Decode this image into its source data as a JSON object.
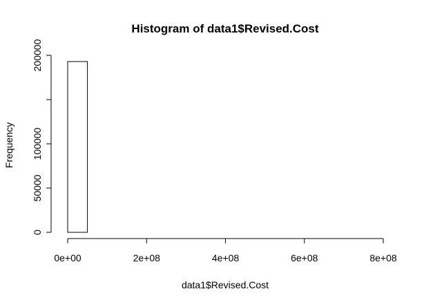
{
  "chart_data": {
    "type": "bar",
    "title": "Histogram of data1$Revised.Cost",
    "xlabel": "data1$Revised.Cost",
    "ylabel": "Frequency",
    "bin_width": 50000000,
    "bins": [
      {
        "start": 0,
        "end": 50000000,
        "count": 193000
      },
      {
        "start": 50000000,
        "end": 100000000,
        "count": 0
      },
      {
        "start": 100000000,
        "end": 150000000,
        "count": 0
      },
      {
        "start": 150000000,
        "end": 200000000,
        "count": 0
      },
      {
        "start": 200000000,
        "end": 250000000,
        "count": 0
      },
      {
        "start": 250000000,
        "end": 300000000,
        "count": 0
      },
      {
        "start": 300000000,
        "end": 350000000,
        "count": 0
      },
      {
        "start": 350000000,
        "end": 400000000,
        "count": 0
      },
      {
        "start": 400000000,
        "end": 450000000,
        "count": 0
      },
      {
        "start": 450000000,
        "end": 500000000,
        "count": 0
      },
      {
        "start": 500000000,
        "end": 550000000,
        "count": 0
      },
      {
        "start": 550000000,
        "end": 600000000,
        "count": 0
      },
      {
        "start": 600000000,
        "end": 650000000,
        "count": 0
      },
      {
        "start": 650000000,
        "end": 700000000,
        "count": 0
      },
      {
        "start": 700000000,
        "end": 750000000,
        "count": 0
      },
      {
        "start": 750000000,
        "end": 800000000,
        "count": 0
      }
    ],
    "xlim": [
      0,
      800000000
    ],
    "ylim": [
      0,
      200000
    ],
    "x_ticks": [
      {
        "value": 0,
        "label": "0e+00"
      },
      {
        "value": 200000000,
        "label": "2e+08"
      },
      {
        "value": 400000000,
        "label": "4e+08"
      },
      {
        "value": 600000000,
        "label": "6e+08"
      },
      {
        "value": 800000000,
        "label": "8e+08"
      }
    ],
    "y_ticks": [
      {
        "value": 0,
        "label": "0"
      },
      {
        "value": 50000,
        "label": "50000"
      },
      {
        "value": 100000,
        "label": "100000"
      },
      {
        "value": 150000,
        "label": ""
      },
      {
        "value": 200000,
        "label": "200000"
      }
    ],
    "grid": false,
    "legend": "none"
  }
}
